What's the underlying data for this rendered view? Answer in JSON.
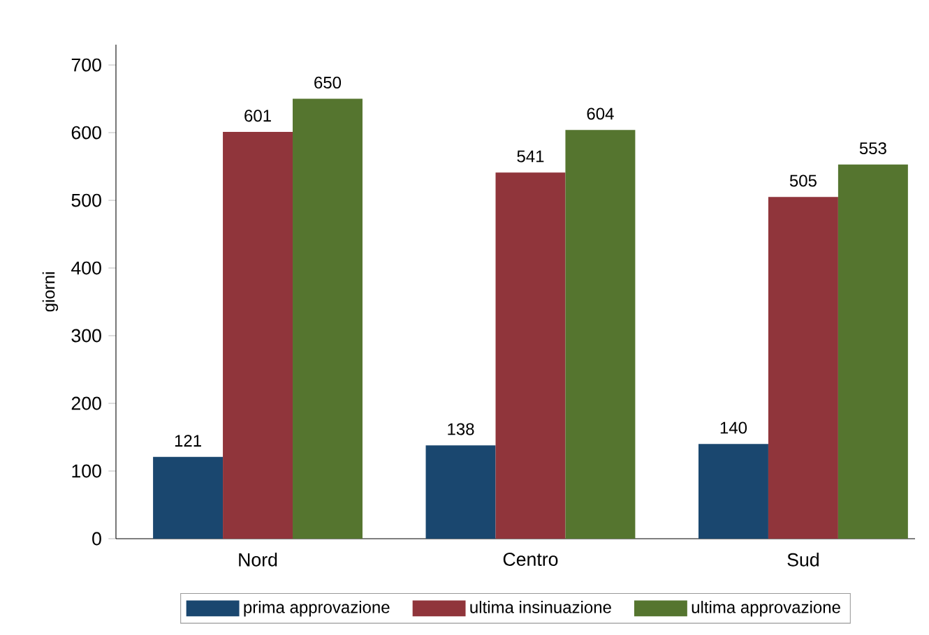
{
  "chart_data": {
    "type": "bar",
    "ylabel": "giorni",
    "categories": [
      "Nord",
      "Centro",
      "Sud"
    ],
    "series": [
      {
        "name": "prima approvazione",
        "color": "#1a476f",
        "values": [
          121,
          138,
          140
        ]
      },
      {
        "name": "ultima insinuazione",
        "color": "#90353b",
        "values": [
          601,
          541,
          505
        ]
      },
      {
        "name": "ultima approvazione",
        "color": "#55752f",
        "values": [
          650,
          604,
          553
        ]
      }
    ],
    "ylim": [
      0,
      730
    ],
    "yticks": [
      0,
      100,
      200,
      300,
      400,
      500,
      600,
      700
    ],
    "data_labels": true,
    "legend": "bottom",
    "grid": false
  }
}
